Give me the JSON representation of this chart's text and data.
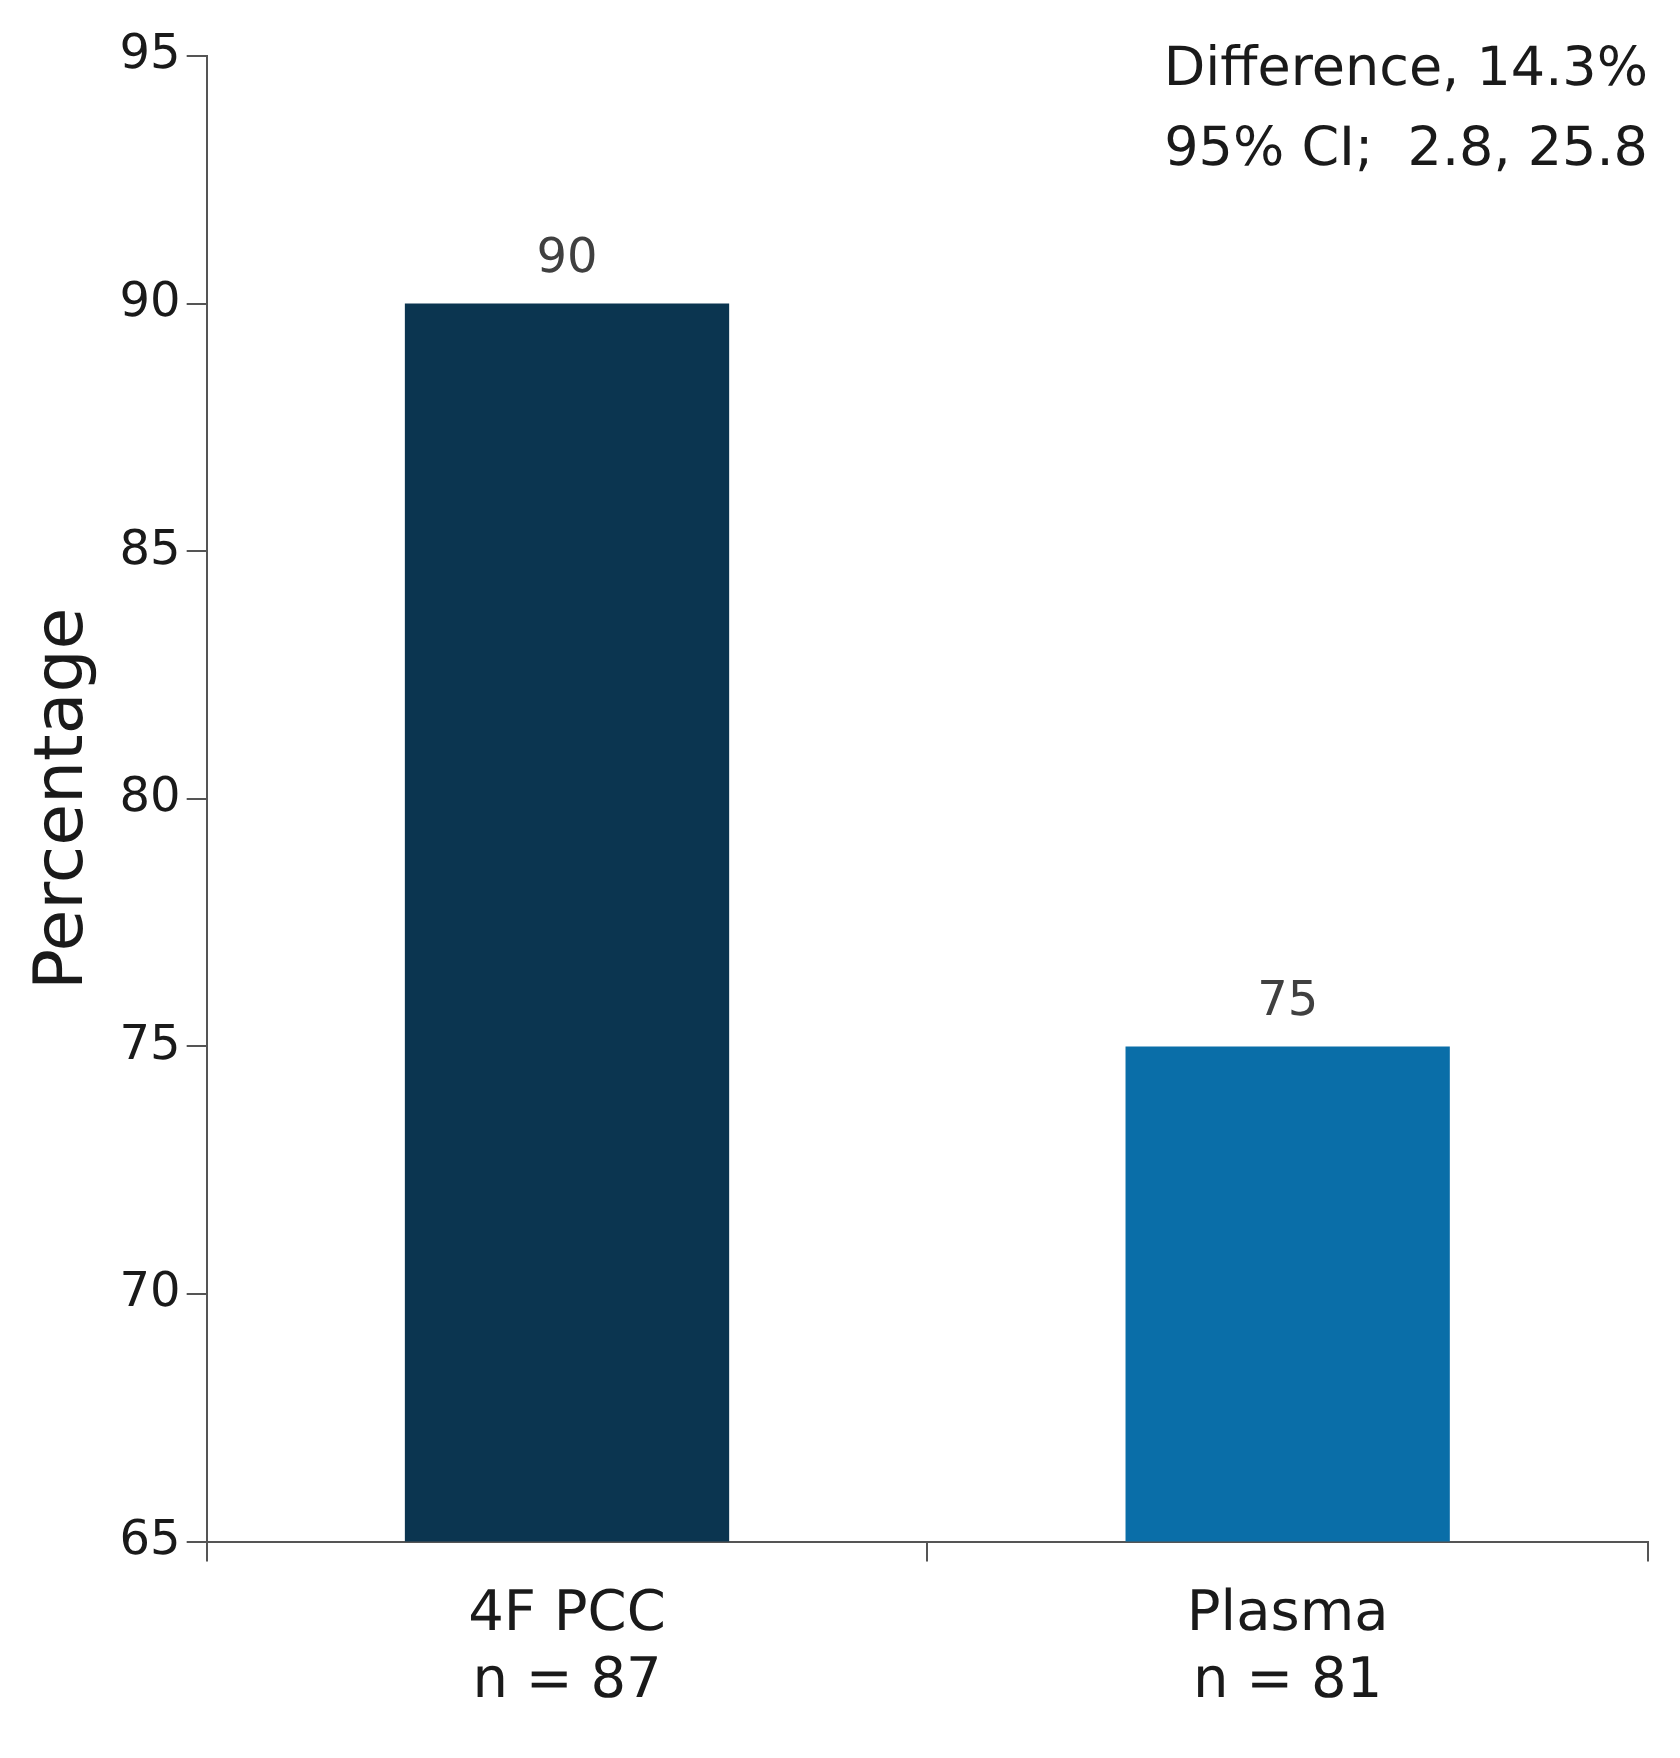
{
  "chart_data": {
    "type": "bar",
    "ylabel": "Percentage",
    "categories": [
      "4F PCC\nn = 87",
      "Plasma\nn = 81"
    ],
    "series": [
      {
        "colors": [
          "#0b3550",
          "#0a6ea8"
        ],
        "values": [
          90,
          75
        ]
      }
    ],
    "ylim": [
      65,
      95
    ],
    "yticks": [
      65,
      70,
      75,
      80,
      85,
      90,
      95
    ],
    "data_labels": true,
    "annotations": [
      "Difference, 14.3%",
      "95% CI;  2.8, 25.8"
    ]
  }
}
